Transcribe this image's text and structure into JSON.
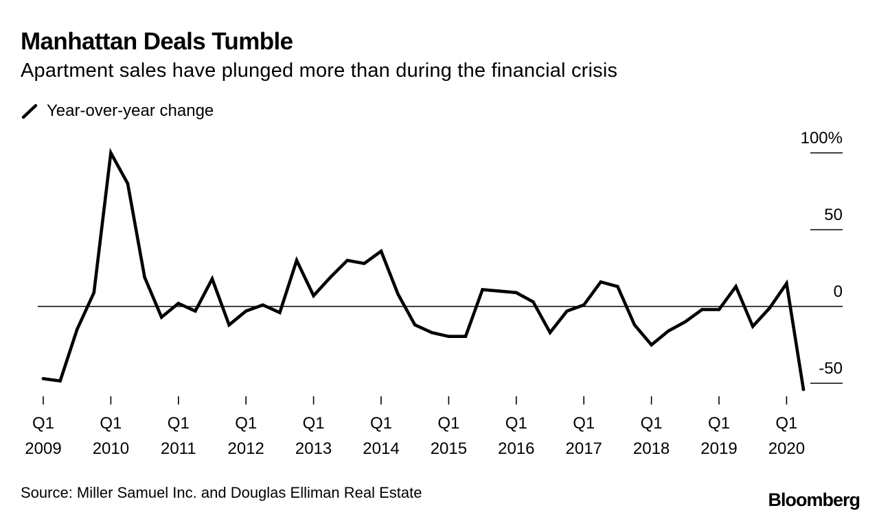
{
  "title": "Manhattan Deals Tumble",
  "subtitle": "Apartment sales have plunged more than during the financial crisis",
  "source": "Source: Miller Samuel Inc. and Douglas Elliman Real Estate",
  "brand": "Bloomberg",
  "colors": {
    "line": "#000000",
    "zero_line": "#000000",
    "text": "#000000"
  },
  "chart_data": {
    "type": "line",
    "series": [
      {
        "name": "Year-over-year change",
        "x": [
          "Q1 2009",
          "Q2 2009",
          "Q3 2009",
          "Q4 2009",
          "Q1 2010",
          "Q2 2010",
          "Q3 2010",
          "Q4 2010",
          "Q1 2011",
          "Q2 2011",
          "Q3 2011",
          "Q4 2011",
          "Q1 2012",
          "Q2 2012",
          "Q3 2012",
          "Q4 2012",
          "Q1 2013",
          "Q2 2013",
          "Q3 2013",
          "Q4 2013",
          "Q1 2014",
          "Q2 2014",
          "Q3 2014",
          "Q4 2014",
          "Q1 2015",
          "Q2 2015",
          "Q3 2015",
          "Q4 2015",
          "Q1 2016",
          "Q2 2016",
          "Q3 2016",
          "Q4 2016",
          "Q1 2017",
          "Q2 2017",
          "Q3 2017",
          "Q4 2017",
          "Q1 2018",
          "Q2 2018",
          "Q3 2018",
          "Q4 2018",
          "Q1 2019",
          "Q2 2019",
          "Q3 2019",
          "Q4 2019",
          "Q1 2020",
          "Q2 2020"
        ],
        "values": [
          -47,
          -48.5,
          -15,
          9,
          100,
          80,
          19,
          -7,
          2,
          -3,
          18,
          -12,
          -3,
          1,
          -4,
          30,
          7,
          19,
          30,
          28,
          36,
          8,
          -12,
          -17,
          -19.5,
          -19.5,
          11,
          10,
          9,
          3,
          -17,
          -3,
          1,
          16,
          13,
          -12,
          -25,
          -16,
          -10,
          -2,
          -2,
          13,
          -13,
          -1,
          15,
          -54
        ]
      }
    ],
    "x_tick_labels": [
      [
        "Q1",
        "2009"
      ],
      [
        "Q1",
        "2010"
      ],
      [
        "Q1",
        "2011"
      ],
      [
        "Q1",
        "2012"
      ],
      [
        "Q1",
        "2013"
      ],
      [
        "Q1",
        "2014"
      ],
      [
        "Q1",
        "2015"
      ],
      [
        "Q1",
        "2016"
      ],
      [
        "Q1",
        "2017"
      ],
      [
        "Q1",
        "2018"
      ],
      [
        "Q1",
        "2019"
      ],
      [
        "Q1",
        "2020"
      ]
    ],
    "y_ticks": [
      100,
      50,
      0,
      -50
    ],
    "y_tick_labels": [
      "100%",
      "50",
      "0",
      "-50"
    ],
    "ylim": [
      -60,
      105
    ],
    "grid": false,
    "legend_position": "top-left",
    "y_axis_side": "right"
  }
}
